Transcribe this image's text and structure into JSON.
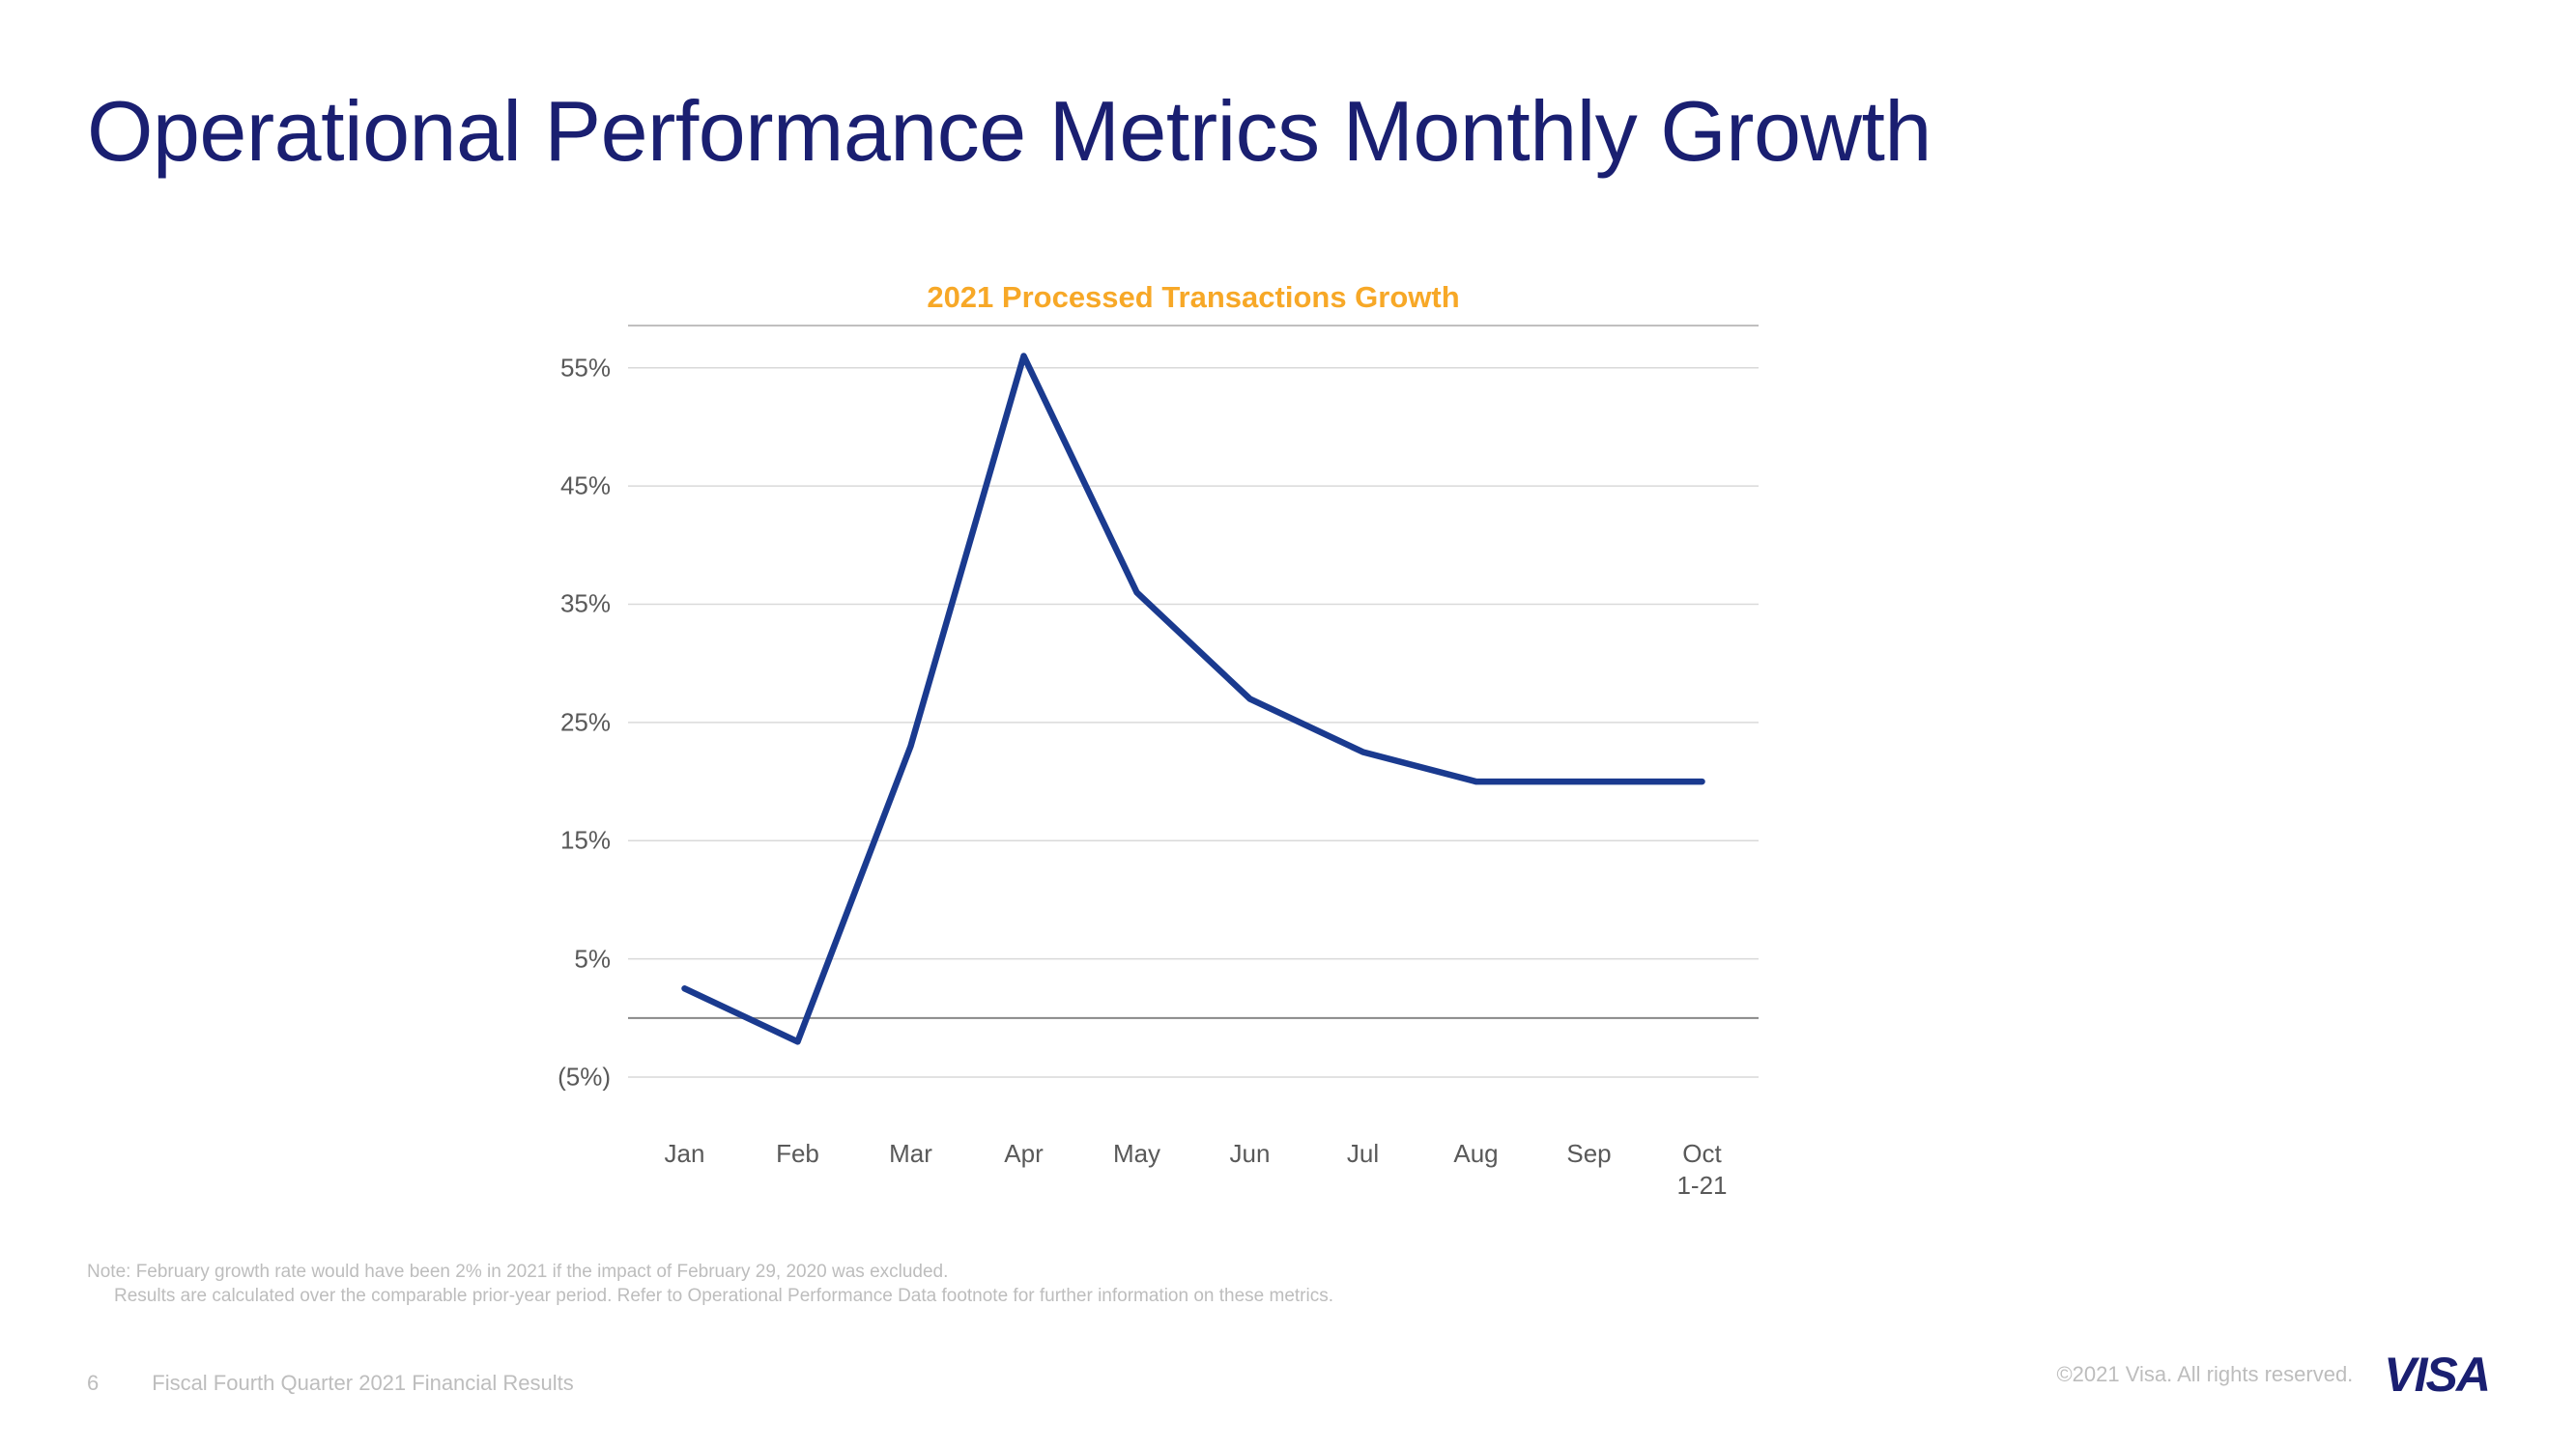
{
  "title": "Operational Performance Metrics Monthly Growth",
  "chart": {
    "type": "line",
    "title": "2021 Processed Transactions Growth",
    "title_color": "#f7a827",
    "title_fontsize": 31,
    "line_color": "#1a3a8f",
    "line_width": 6.5,
    "grid_color": "#d9d9d9",
    "axis_color": "#888888",
    "background_color": "#ffffff",
    "label_color": "#595959",
    "label_fontsize": 26,
    "ylim": [
      -9,
      58
    ],
    "yticks": [
      -5,
      5,
      15,
      25,
      35,
      45,
      55
    ],
    "ytick_labels": [
      "(5%)",
      "5%",
      "15%",
      "25%",
      "35%",
      "45%",
      "55%"
    ],
    "categories": [
      "Jan",
      "Feb",
      "Mar",
      "Apr",
      "May",
      "Jun",
      "Jul",
      "Aug",
      "Sep",
      "Oct\n1-21"
    ],
    "values": [
      2.5,
      -2,
      23,
      56,
      36,
      27,
      22.5,
      20,
      20,
      20
    ]
  },
  "footnote": {
    "line1": "Note: February growth rate would have been 2% in 2021 if the impact of February 29, 2020 was excluded.",
    "line2": "Results are calculated over the comparable prior-year period. Refer to Operational Performance Data footnote for further information on these metrics."
  },
  "footer": {
    "page_number": "6",
    "doc_title": "Fiscal Fourth Quarter 2021 Financial Results",
    "copyright": "©2021 Visa. All rights reserved.",
    "logo_text": "VISA"
  }
}
